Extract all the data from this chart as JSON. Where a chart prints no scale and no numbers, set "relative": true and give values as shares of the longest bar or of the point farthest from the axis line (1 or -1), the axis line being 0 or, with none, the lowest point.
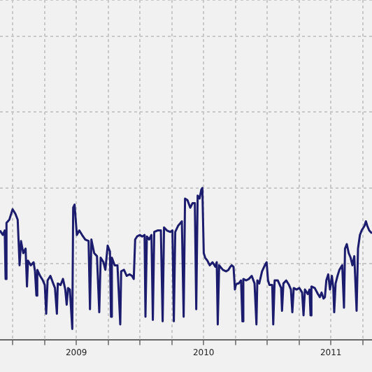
{
  "chart_data": {
    "type": "line",
    "relative": true,
    "color": "#1c1c6e",
    "marker": "none",
    "grid": true,
    "xlim": [
      2008.9,
      2011.823
    ],
    "xticks": [
      {
        "value": 2009,
        "label": null
      },
      {
        "value": 2009.25,
        "label": null
      },
      {
        "value": 2009.5,
        "label": "2009"
      },
      {
        "value": 2009.75,
        "label": null
      },
      {
        "value": 2010,
        "label": null
      },
      {
        "value": 2010.25,
        "label": null
      },
      {
        "value": 2010.5,
        "label": "2010"
      },
      {
        "value": 2010.75,
        "label": null
      },
      {
        "value": 2011,
        "label": null
      },
      {
        "value": 2011.25,
        "label": null
      },
      {
        "value": 2011.5,
        "label": "2011"
      },
      {
        "value": 2011.75,
        "label": null
      }
    ],
    "x": [
      2008.9,
      2008.922,
      2008.937,
      2008.944,
      2008.951,
      2008.973,
      2008.999,
      2009.021,
      2009.039,
      2009.054,
      2009.065,
      2009.083,
      2009.101,
      2009.112,
      2009.12,
      2009.142,
      2009.164,
      2009.175,
      2009.186,
      2009.193,
      2009.215,
      2009.237,
      2009.252,
      2009.263,
      2009.274,
      2009.296,
      2009.318,
      2009.332,
      2009.347,
      2009.354,
      2009.376,
      2009.395,
      2009.413,
      2009.424,
      2009.435,
      2009.449,
      2009.468,
      2009.475,
      2009.486,
      2009.504,
      2009.523,
      2009.545,
      2009.57,
      2009.596,
      2009.607,
      2009.618,
      2009.64,
      2009.662,
      2009.68,
      2009.691,
      2009.713,
      2009.728,
      2009.746,
      2009.764,
      2009.772,
      2009.779,
      2009.801,
      2009.823,
      2009.845,
      2009.852,
      2009.874,
      2009.896,
      2009.918,
      2009.937,
      2009.951,
      2009.962,
      2009.977,
      2009.999,
      2010.017,
      2010.036,
      2010.043,
      2010.054,
      2010.072,
      2010.09,
      2010.101,
      2010.112,
      2010.138,
      2010.164,
      2010.178,
      2010.189,
      2010.211,
      2010.237,
      2010.255,
      2010.266,
      2010.277,
      2010.299,
      2010.329,
      2010.343,
      2010.354,
      2010.373,
      2010.395,
      2010.413,
      2010.431,
      2010.442,
      2010.453,
      2010.468,
      2010.482,
      2010.49,
      2010.501,
      2010.512,
      2010.53,
      2010.548,
      2010.57,
      2010.592,
      2010.603,
      2010.611,
      2010.622,
      2010.651,
      2010.677,
      2010.695,
      2010.71,
      2010.721,
      2010.735,
      2010.746,
      2010.753,
      2010.764,
      2010.775,
      2010.794,
      2010.805,
      2010.812,
      2010.834,
      2010.856,
      2010.878,
      2010.9,
      2010.915,
      2010.922,
      2010.937,
      2010.959,
      2010.981,
      2010.995,
      2011.006,
      2011.017,
      2011.039,
      2011.047,
      2011.058,
      2011.083,
      2011.109,
      2011.116,
      2011.127,
      2011.149,
      2011.171,
      2011.186,
      2011.197,
      2011.208,
      2011.23,
      2011.252,
      2011.274,
      2011.285,
      2011.296,
      2011.318,
      2011.332,
      2011.34,
      2011.347,
      2011.373,
      2011.398,
      2011.413,
      2011.427,
      2011.442,
      2011.453,
      2011.464,
      2011.479,
      2011.493,
      2011.508,
      2011.519,
      2011.526,
      2011.537,
      2011.552,
      2011.567,
      2011.589,
      2011.603,
      2011.611,
      2011.625,
      2011.64,
      2011.655,
      2011.669,
      2011.684,
      2011.702,
      2011.713,
      2011.728,
      2011.742,
      2011.764,
      2011.775,
      2011.786,
      2011.801,
      2011.812,
      2011.823
    ],
    "values": [
      0.72,
      0.69,
      0.72,
      0.4,
      0.77,
      0.79,
      0.86,
      0.83,
      0.79,
      0.49,
      0.65,
      0.57,
      0.6,
      0.35,
      0.52,
      0.49,
      0.51,
      0.45,
      0.29,
      0.46,
      0.42,
      0.39,
      0.36,
      0.17,
      0.39,
      0.42,
      0.37,
      0.34,
      0.17,
      0.37,
      0.36,
      0.4,
      0.33,
      0.23,
      0.34,
      0.33,
      0.07,
      0.87,
      0.89,
      0.69,
      0.72,
      0.69,
      0.66,
      0.65,
      0.2,
      0.66,
      0.57,
      0.55,
      0.18,
      0.54,
      0.51,
      0.46,
      0.62,
      0.58,
      0.15,
      0.54,
      0.49,
      0.49,
      0.1,
      0.45,
      0.46,
      0.42,
      0.43,
      0.42,
      0.4,
      0.66,
      0.68,
      0.69,
      0.68,
      0.69,
      0.15,
      0.68,
      0.66,
      0.69,
      0.13,
      0.71,
      0.72,
      0.72,
      0.12,
      0.74,
      0.72,
      0.71,
      0.72,
      0.12,
      0.71,
      0.75,
      0.78,
      0.15,
      0.93,
      0.92,
      0.87,
      0.9,
      0.9,
      0.2,
      0.95,
      0.93,
      0.99,
      1.0,
      0.57,
      0.54,
      0.52,
      0.49,
      0.51,
      0.48,
      0.51,
      0.1,
      0.49,
      0.46,
      0.45,
      0.46,
      0.48,
      0.49,
      0.48,
      0.33,
      0.36,
      0.37,
      0.37,
      0.39,
      0.12,
      0.4,
      0.39,
      0.4,
      0.42,
      0.37,
      0.1,
      0.39,
      0.37,
      0.45,
      0.49,
      0.51,
      0.39,
      0.36,
      0.36,
      0.1,
      0.39,
      0.39,
      0.34,
      0.19,
      0.37,
      0.39,
      0.36,
      0.33,
      0.18,
      0.34,
      0.33,
      0.34,
      0.31,
      0.16,
      0.33,
      0.3,
      0.33,
      0.16,
      0.35,
      0.34,
      0.3,
      0.28,
      0.31,
      0.27,
      0.28,
      0.39,
      0.43,
      0.33,
      0.42,
      0.34,
      0.18,
      0.37,
      0.42,
      0.46,
      0.49,
      0.21,
      0.6,
      0.63,
      0.57,
      0.54,
      0.49,
      0.55,
      0.19,
      0.6,
      0.69,
      0.72,
      0.75,
      0.78,
      0.75,
      0.72,
      0.71,
      0.7
    ]
  }
}
